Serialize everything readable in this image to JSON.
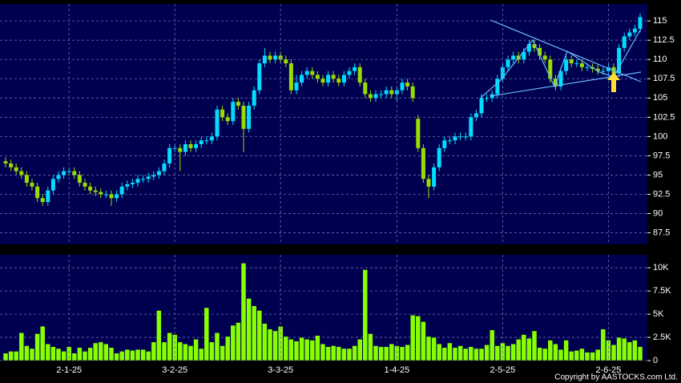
{
  "chart_data": [
    {
      "type": "candlestick",
      "up_color": "#00ddff",
      "down_color": "#99dd00",
      "grid": true,
      "ylim": [
        86,
        117.2
      ],
      "yticks": [
        87.5,
        90,
        92.5,
        95,
        97.5,
        100,
        102.5,
        105,
        107.5,
        110,
        112.5,
        115
      ],
      "open": [
        96.8,
        96.5,
        96,
        95.5,
        95,
        94,
        93.5,
        92,
        91.5,
        93,
        94.5,
        95,
        95.5,
        95.5,
        95,
        94,
        93.5,
        93,
        92.8,
        92.5,
        92.5,
        92,
        92.5,
        93.5,
        93.8,
        94,
        94.5,
        94.5,
        94.8,
        95,
        95.5,
        96.5,
        98.5,
        98.5,
        98,
        99,
        98.5,
        99,
        99.5,
        99.5,
        100,
        103.5,
        102.5,
        102,
        104.5,
        104,
        101,
        104,
        106,
        109.5,
        110.5,
        110,
        110.5,
        110,
        109.5,
        106,
        107,
        108,
        108.5,
        108,
        107.5,
        107,
        108,
        107.5,
        107,
        108,
        108.5,
        109,
        107,
        105.5,
        105,
        105.5,
        105.5,
        106,
        105.5,
        106,
        107,
        106.5,
        102.3,
        98.5,
        94.5,
        93.5,
        96,
        98.5,
        99.5,
        99.5,
        100,
        100,
        100,
        102.5,
        103,
        105,
        105,
        105.5,
        107.5,
        109,
        110,
        110.5,
        110,
        111,
        112,
        111.5,
        110.5,
        110,
        107.5,
        106.5,
        108.5,
        110,
        109.5,
        109.5,
        109,
        109,
        108.8,
        108.5,
        108.5,
        109,
        108.2,
        111.5,
        113,
        113.5,
        114
      ],
      "high": [
        97.3,
        97,
        96.5,
        96,
        95.5,
        94.5,
        94,
        92.5,
        93.5,
        95,
        95.5,
        96,
        96,
        96,
        95.5,
        94.5,
        94,
        93.5,
        93.3,
        93,
        93,
        93,
        94,
        94.3,
        94.5,
        95,
        95,
        95.3,
        95.5,
        96,
        97,
        99,
        99,
        99,
        99.5,
        99.5,
        99.5,
        100,
        100,
        100.5,
        104,
        104,
        103,
        105,
        105,
        104.5,
        104.5,
        106.5,
        110,
        111.5,
        111,
        111,
        111,
        110.5,
        110,
        108,
        108.5,
        109,
        109,
        108.5,
        108,
        108.5,
        108.5,
        108,
        108.5,
        109,
        109.5,
        109.5,
        107.5,
        106,
        106,
        106,
        106.5,
        106.5,
        106.5,
        107.5,
        107.5,
        107,
        102.8,
        99,
        95,
        96.5,
        99,
        100,
        100,
        100.5,
        100.5,
        100.5,
        103,
        103.5,
        105.5,
        105.5,
        106,
        108,
        109.5,
        110.5,
        111,
        111,
        111.5,
        112.5,
        112.5,
        112,
        111,
        110.5,
        108,
        109,
        110.5,
        110.5,
        110,
        110,
        109.5,
        109.5,
        109.3,
        109,
        109.5,
        109.5,
        112,
        113.5,
        114,
        114.5,
        116
      ],
      "low": [
        96,
        95.5,
        95,
        94.5,
        93.5,
        93,
        91.5,
        91,
        91,
        92.5,
        94,
        94.5,
        95,
        94.5,
        93.5,
        93,
        92.5,
        92.3,
        92,
        92,
        91,
        91.5,
        92,
        93,
        93.3,
        93.5,
        94,
        94,
        94.3,
        94.5,
        95,
        96,
        98,
        95.5,
        97.5,
        98,
        98,
        98.5,
        99,
        99,
        99.5,
        102,
        101.5,
        101.5,
        103.5,
        98,
        100.5,
        103.5,
        105.5,
        109,
        109.5,
        109.5,
        109.5,
        109,
        105.5,
        105.5,
        106.5,
        107.5,
        107.5,
        107,
        106.5,
        106.5,
        107,
        106.5,
        106.5,
        107.5,
        108,
        106.5,
        105,
        104.5,
        104.5,
        105,
        105,
        105,
        104.5,
        105.5,
        106,
        104.5,
        98,
        94,
        92,
        93,
        95.5,
        98,
        99,
        99,
        99.5,
        99.5,
        99.5,
        102,
        102.5,
        104.5,
        104.5,
        105,
        107,
        108.5,
        109.5,
        109.5,
        109.5,
        110.5,
        111,
        110,
        109.5,
        107,
        106,
        106,
        108,
        109,
        109,
        108.5,
        108.5,
        108.3,
        108,
        108,
        108,
        107.7,
        107.7,
        111,
        112.5,
        113,
        113.5
      ],
      "close": [
        96.5,
        96,
        95.5,
        95,
        94,
        93.5,
        92,
        91.5,
        93,
        94.5,
        95,
        95.5,
        95.5,
        95,
        94,
        93.5,
        93,
        92.8,
        92.5,
        92.5,
        92,
        92.5,
        93.5,
        93.8,
        94,
        94.5,
        94.5,
        94.8,
        95,
        95.5,
        96.5,
        98.5,
        98.5,
        98,
        99,
        98.5,
        99,
        99.5,
        99.5,
        100,
        103.5,
        102.5,
        102,
        104.5,
        104,
        101,
        104,
        106,
        109.5,
        110.5,
        110,
        110.5,
        110,
        109.5,
        106,
        107,
        108,
        108.5,
        108,
        107.5,
        107,
        108,
        107.5,
        107,
        108,
        108.5,
        109,
        107,
        105.5,
        105,
        105.5,
        105.5,
        106,
        105.5,
        106,
        107,
        106.5,
        105,
        98.5,
        94.5,
        93.5,
        96,
        98.5,
        99.5,
        99.5,
        100,
        100,
        100,
        102.5,
        103,
        105,
        105,
        105.5,
        107.5,
        109,
        110,
        110.5,
        110,
        111,
        112,
        111.5,
        110.5,
        110,
        107.5,
        106.5,
        108.5,
        110,
        109.5,
        109.5,
        109,
        109,
        108.8,
        108.5,
        108.5,
        109,
        108.2,
        111.5,
        113,
        113.5,
        114,
        115.5
      ]
    },
    {
      "type": "bar",
      "color": "#88ff00",
      "grid": true,
      "ylim": [
        0,
        11400
      ],
      "yticks": [
        0,
        {
          "value": 2500,
          "label": "2.5K"
        },
        {
          "value": 5000,
          "label": "5K"
        },
        {
          "value": 7500,
          "label": "7.5K"
        },
        {
          "value": 10000,
          "label": "10K"
        }
      ],
      "categories": [
        null,
        null,
        null,
        null,
        null,
        null,
        null,
        null,
        null,
        null,
        null,
        null,
        "2-1-25",
        null,
        null,
        null,
        null,
        null,
        null,
        null,
        null,
        null,
        null,
        null,
        null,
        null,
        null,
        null,
        null,
        null,
        null,
        null,
        "3-2-25",
        null,
        null,
        null,
        null,
        null,
        null,
        null,
        null,
        null,
        null,
        null,
        null,
        null,
        null,
        null,
        null,
        null,
        null,
        null,
        "3-3-25",
        null,
        null,
        null,
        null,
        null,
        null,
        null,
        null,
        null,
        null,
        null,
        null,
        null,
        null,
        null,
        null,
        null,
        null,
        null,
        null,
        null,
        "1-4-25",
        null,
        null,
        null,
        null,
        null,
        null,
        null,
        null,
        null,
        null,
        null,
        null,
        null,
        null,
        null,
        null,
        null,
        null,
        null,
        "2-5-25",
        null,
        null,
        null,
        null,
        null,
        null,
        null,
        null,
        null,
        null,
        null,
        null,
        null,
        null,
        null,
        null,
        null,
        null,
        null,
        "2-6-25",
        null,
        null,
        null,
        null,
        null,
        null
      ],
      "values": [
        800,
        1000,
        1000,
        3000,
        1600,
        1300,
        2900,
        3700,
        1800,
        1500,
        1300,
        1000,
        1500,
        800,
        1400,
        1000,
        1400,
        1900,
        2000,
        1800,
        1400,
        800,
        1000,
        1200,
        1100,
        1200,
        1200,
        1000,
        2000,
        5400,
        2000,
        3000,
        2800,
        2000,
        1800,
        1600,
        2300,
        1300,
        5700,
        2000,
        3000,
        1600,
        2600,
        3800,
        4100,
        10500,
        6700,
        5900,
        5400,
        4000,
        3400,
        3200,
        3700,
        2600,
        2300,
        2100,
        2500,
        2300,
        2200,
        2700,
        1800,
        1500,
        1600,
        1500,
        1300,
        1300,
        1600,
        2300,
        9800,
        2900,
        1600,
        1500,
        1500,
        1800,
        1600,
        1500,
        1700,
        4900,
        4800,
        4200,
        2600,
        2500,
        1800,
        1400,
        1900,
        1400,
        1600,
        1300,
        1500,
        1300,
        1300,
        1700,
        3300,
        1600,
        1900,
        1600,
        1800,
        2300,
        2800,
        2400,
        3200,
        1400,
        1300,
        2200,
        1800,
        1200,
        2200,
        1000,
        1100,
        1300,
        900,
        900,
        1200,
        3400,
        2200,
        1700,
        2500,
        2400,
        2000,
        2200,
        1500
      ]
    }
  ],
  "copyright": "Copyright by AASTOCKS.com Ltd."
}
